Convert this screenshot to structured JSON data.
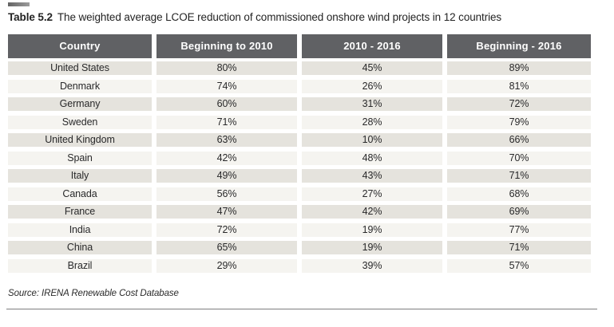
{
  "caption": {
    "label": "Table 5.2",
    "text": "The weighted average LCOE reduction of commissioned onshore wind projects in 12 countries"
  },
  "table": {
    "columns": [
      "Country",
      "Beginning to 2010",
      "2010 - 2016",
      "Beginning - 2016"
    ],
    "rows": [
      [
        "United States",
        "80%",
        "45%",
        "89%"
      ],
      [
        "Denmark",
        "74%",
        "26%",
        "81%"
      ],
      [
        "Germany",
        "60%",
        "31%",
        "72%"
      ],
      [
        "Sweden",
        "71%",
        "28%",
        "79%"
      ],
      [
        "United Kingdom",
        "63%",
        "10%",
        "66%"
      ],
      [
        "Spain",
        "42%",
        "48%",
        "70%"
      ],
      [
        "Italy",
        "49%",
        "43%",
        "71%"
      ],
      [
        "Canada",
        "56%",
        "27%",
        "68%"
      ],
      [
        "France",
        "47%",
        "42%",
        "69%"
      ],
      [
        "India",
        "72%",
        "19%",
        "77%"
      ],
      [
        "China",
        "65%",
        "19%",
        "71%"
      ],
      [
        "Brazil",
        "29%",
        "39%",
        "57%"
      ]
    ]
  },
  "source": "Source: IRENA Renewable Cost Database",
  "colors": {
    "header_bg": "#606164",
    "header_text": "#ffffff",
    "row_stripe_dark": "#e5e3dd",
    "row_stripe_light": "#f5f4f0",
    "body_text": "#29292a",
    "rule": "#7d7d7f"
  }
}
